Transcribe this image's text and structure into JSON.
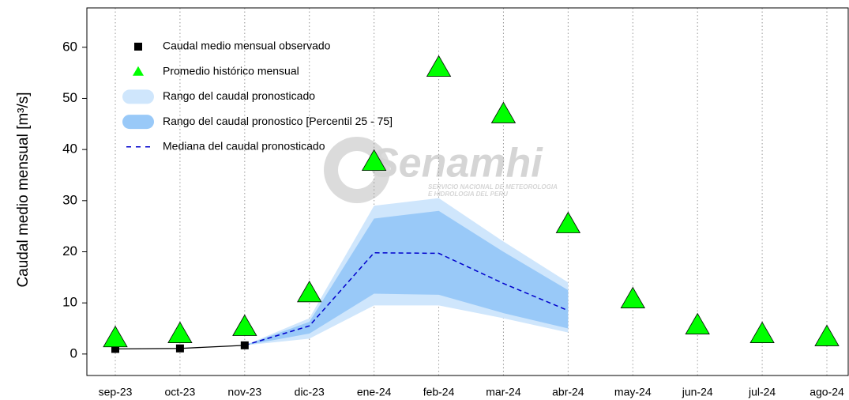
{
  "chart_data": {
    "type": "line",
    "ylabel": "Caudal medio mensual  [m³/s]",
    "watermark": "Senamhi",
    "watermark_sub": [
      "SERVICIO NACIONAL DE METEOROLOGIA",
      "E HIDROLOGIA DEL PERU"
    ],
    "categories": [
      "sep-23",
      "oct-23",
      "nov-23",
      "dic-23",
      "ene-24",
      "feb-24",
      "mar-24",
      "abr-24",
      "may-24",
      "jun-24",
      "jul-24",
      "ago-24"
    ],
    "ylim": [
      -4.2,
      67.7
    ],
    "yticks": [
      0,
      10,
      20,
      30,
      40,
      50,
      60
    ],
    "grid": true,
    "series": [
      {
        "name": "Caudal medio mensual observado",
        "kind": "square",
        "color": "#000000",
        "values": [
          1.0,
          1.1,
          1.7,
          null,
          null,
          null,
          null,
          null,
          null,
          null,
          null,
          null
        ]
      },
      {
        "name": "Promedio histórico mensual",
        "kind": "triangle",
        "color": "#00ff00",
        "values": [
          2.8,
          3.6,
          5.0,
          11.6,
          37.3,
          55.7,
          46.6,
          25.1,
          10.4,
          5.3,
          3.6,
          3.0
        ]
      },
      {
        "name": "Rango del caudal pronosticado",
        "kind": "band",
        "color": "#cfe6fc",
        "low": [
          null,
          null,
          1.7,
          3.0,
          9.5,
          9.5,
          7.0,
          4.2,
          null,
          null,
          null,
          null
        ],
        "high": [
          null,
          null,
          1.7,
          7.0,
          29.0,
          30.5,
          22.0,
          14.0,
          null,
          null,
          null,
          null
        ]
      },
      {
        "name": "Rango del caudal pronostico [Percentil 25 - 75]",
        "kind": "band",
        "color": "#99c9f8",
        "low": [
          null,
          null,
          1.7,
          4.0,
          11.8,
          11.6,
          8.0,
          5.0,
          null,
          null,
          null,
          null
        ],
        "high": [
          null,
          null,
          1.7,
          6.3,
          26.5,
          28.0,
          20.0,
          12.5,
          null,
          null,
          null,
          null
        ]
      },
      {
        "name": "Mediana del caudal pronosticado",
        "kind": "dashed",
        "color": "#0000cc",
        "values": [
          null,
          null,
          1.7,
          5.5,
          19.8,
          19.7,
          13.8,
          8.5,
          null,
          null,
          null,
          null
        ]
      }
    ]
  }
}
